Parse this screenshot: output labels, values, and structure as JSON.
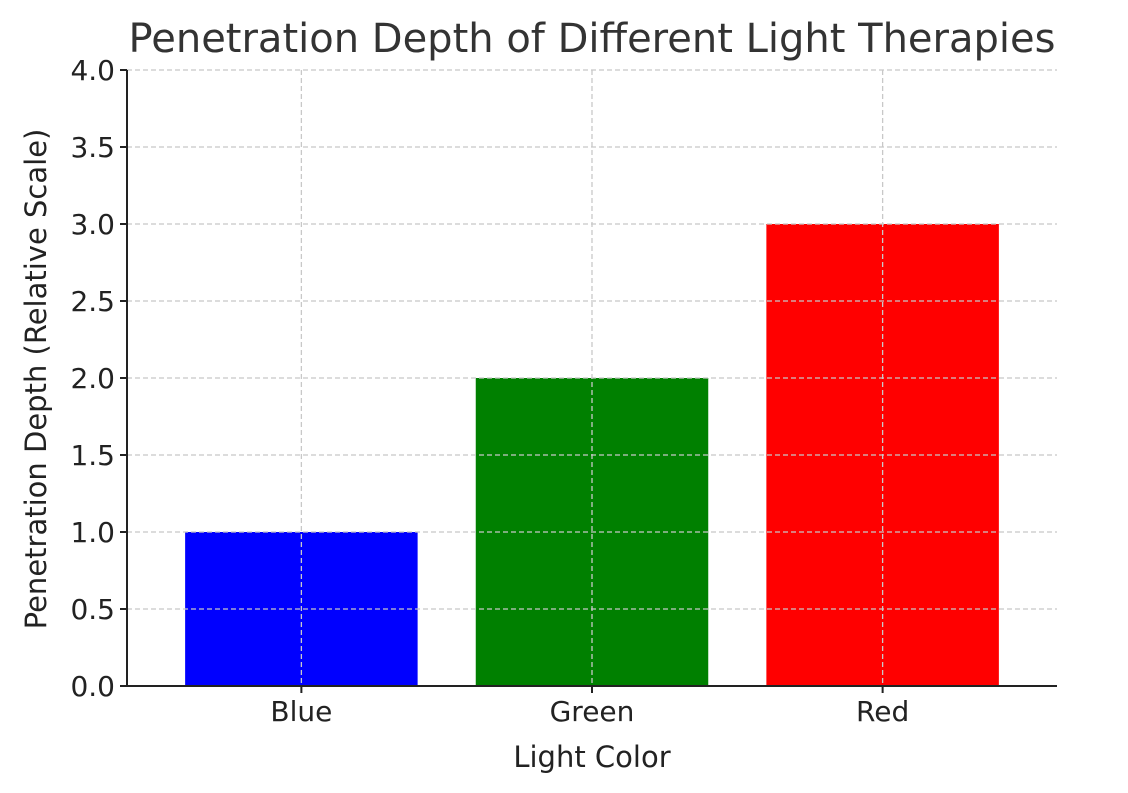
{
  "chart_data": {
    "type": "bar",
    "title": "Penetration Depth of Different Light Therapies",
    "xlabel": "Light Color",
    "ylabel": "Penetration Depth (Relative Scale)",
    "categories": [
      "Blue",
      "Green",
      "Red"
    ],
    "values": [
      1,
      2,
      3
    ],
    "colors": [
      "#0000ff",
      "#008000",
      "#ff0000"
    ],
    "ylim": [
      0,
      4
    ],
    "yticks": [
      "0.0",
      "0.5",
      "1.0",
      "1.5",
      "2.0",
      "2.5",
      "3.0",
      "3.5",
      "4.0"
    ],
    "grid": true
  }
}
